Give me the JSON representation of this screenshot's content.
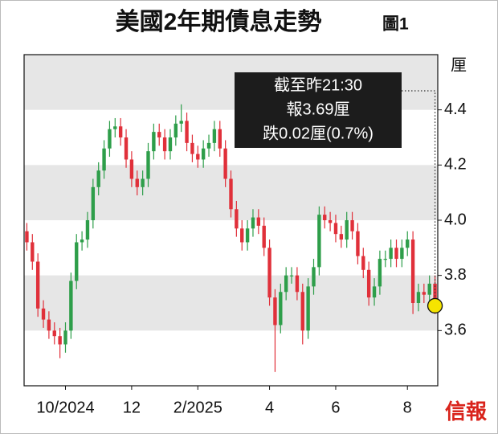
{
  "chart_data": {
    "type": "candlestick",
    "title": "美國2年期債息走勢",
    "figure_label": "圖1",
    "y_unit": "厘",
    "annotation": [
      "截至昨21:30",
      "報3.69厘",
      "跌0.02厘(0.7%)"
    ],
    "source_logo": "信報",
    "categories": [
      null,
      null,
      null,
      null,
      null,
      null,
      null,
      "10/2024",
      null,
      null,
      null,
      null,
      null,
      null,
      null,
      null,
      null,
      null,
      null,
      "12",
      null,
      null,
      null,
      null,
      null,
      null,
      null,
      null,
      null,
      null,
      null,
      "2/2025",
      null,
      null,
      null,
      null,
      null,
      null,
      null,
      null,
      null,
      null,
      null,
      null,
      "4",
      null,
      null,
      null,
      null,
      null,
      null,
      null,
      null,
      null,
      null,
      null,
      "6",
      null,
      null,
      null,
      null,
      null,
      null,
      null,
      null,
      null,
      null,
      null,
      null,
      "8",
      null,
      null,
      null,
      null,
      null
    ],
    "open": [
      3.96,
      3.92,
      3.85,
      3.68,
      3.64,
      3.6,
      3.58,
      3.55,
      3.6,
      3.78,
      3.92,
      3.93,
      4.0,
      4.12,
      4.18,
      4.26,
      4.33,
      4.34,
      4.3,
      4.22,
      4.15,
      4.12,
      4.15,
      4.25,
      4.32,
      4.3,
      4.25,
      4.3,
      4.35,
      4.36,
      4.28,
      4.24,
      4.22,
      4.26,
      4.28,
      4.33,
      4.26,
      4.15,
      4.04,
      3.97,
      3.92,
      3.97,
      4.01,
      3.98,
      3.9,
      3.72,
      3.62,
      3.74,
      3.8,
      3.8,
      3.74,
      3.6,
      3.76,
      3.83,
      4.02,
      4.0,
      3.99,
      3.95,
      3.93,
      4.0,
      3.96,
      3.87,
      3.82,
      3.72,
      3.76,
      3.86,
      3.86,
      3.9,
      3.86,
      3.9,
      3.93,
      3.7,
      3.74,
      3.73,
      3.77
    ],
    "high": [
      3.99,
      3.95,
      3.88,
      3.71,
      3.67,
      3.63,
      3.61,
      3.63,
      3.81,
      3.95,
      3.96,
      4.03,
      4.15,
      4.21,
      4.29,
      4.36,
      4.37,
      4.37,
      4.33,
      4.25,
      4.18,
      4.18,
      4.28,
      4.35,
      4.35,
      4.33,
      4.33,
      4.38,
      4.42,
      4.39,
      4.31,
      4.27,
      4.29,
      4.31,
      4.36,
      4.36,
      4.29,
      4.18,
      4.07,
      4.0,
      4.0,
      4.04,
      4.04,
      4.01,
      3.93,
      3.75,
      3.77,
      3.83,
      3.83,
      3.83,
      3.77,
      3.79,
      3.86,
      4.05,
      4.05,
      4.03,
      4.02,
      3.98,
      4.03,
      4.03,
      3.99,
      3.9,
      3.85,
      3.79,
      3.89,
      3.89,
      3.93,
      3.93,
      3.93,
      3.96,
      3.96,
      3.77,
      3.77,
      3.8,
      3.8
    ],
    "low": [
      3.89,
      3.82,
      3.65,
      3.61,
      3.57,
      3.55,
      3.5,
      3.52,
      3.57,
      3.75,
      3.89,
      3.9,
      3.97,
      4.09,
      4.15,
      4.23,
      4.3,
      4.27,
      4.19,
      4.12,
      4.09,
      4.09,
      4.12,
      4.22,
      4.27,
      4.22,
      4.22,
      4.27,
      4.32,
      4.25,
      4.21,
      4.19,
      4.19,
      4.23,
      4.25,
      4.23,
      4.12,
      4.01,
      3.94,
      3.89,
      3.89,
      3.94,
      3.95,
      3.87,
      3.69,
      3.45,
      3.59,
      3.71,
      3.77,
      3.71,
      3.55,
      3.57,
      3.73,
      3.8,
      3.97,
      3.96,
      3.92,
      3.9,
      3.9,
      3.93,
      3.84,
      3.79,
      3.69,
      3.69,
      3.73,
      3.83,
      3.83,
      3.83,
      3.83,
      3.87,
      3.66,
      3.67,
      3.7,
      3.7,
      3.66
    ],
    "close": [
      3.92,
      3.85,
      3.68,
      3.64,
      3.6,
      3.58,
      3.55,
      3.6,
      3.78,
      3.92,
      3.93,
      4.0,
      4.12,
      4.18,
      4.26,
      4.33,
      4.34,
      4.3,
      4.22,
      4.15,
      4.12,
      4.15,
      4.25,
      4.32,
      4.3,
      4.25,
      4.3,
      4.35,
      4.36,
      4.28,
      4.24,
      4.22,
      4.26,
      4.28,
      4.33,
      4.26,
      4.15,
      4.04,
      3.97,
      3.92,
      3.97,
      4.01,
      3.98,
      3.9,
      3.72,
      3.62,
      3.74,
      3.8,
      3.8,
      3.74,
      3.6,
      3.76,
      3.83,
      4.02,
      4.0,
      3.99,
      3.95,
      3.93,
      4.0,
      3.96,
      3.87,
      3.82,
      3.72,
      3.76,
      3.86,
      3.86,
      3.9,
      3.86,
      3.9,
      3.93,
      3.7,
      3.74,
      3.73,
      3.77,
      3.69
    ],
    "ylim": [
      3.4,
      4.6
    ],
    "yticks": [
      3.6,
      3.8,
      {
        "value": 4,
        "label": "4.0"
      },
      4.2,
      4.4
    ],
    "up_color": "#2e9e4a",
    "down_color": "#e0303a",
    "marker_color": "#f5e400"
  }
}
